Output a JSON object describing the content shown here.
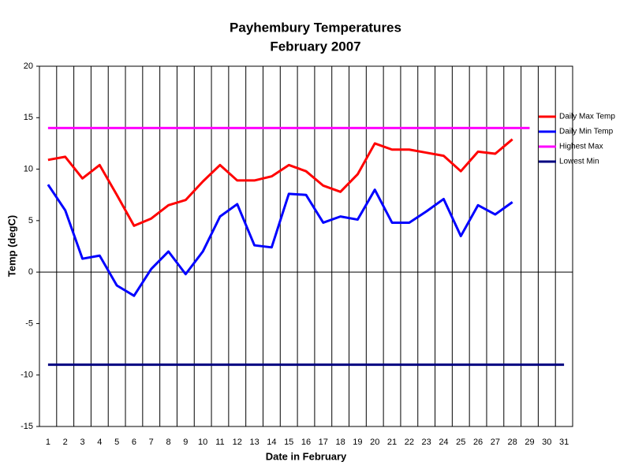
{
  "chart_data": {
    "type": "line",
    "title": [
      "Payhembury Temperatures",
      "February 2007"
    ],
    "x_label": "Date in February",
    "y_label": "Temp (degC)",
    "categories": [
      1,
      2,
      3,
      4,
      5,
      6,
      7,
      8,
      9,
      10,
      11,
      12,
      13,
      14,
      15,
      16,
      17,
      18,
      19,
      20,
      21,
      22,
      23,
      24,
      25,
      26,
      27,
      28,
      29,
      30,
      31
    ],
    "series": [
      {
        "name": "Daily Max Temp",
        "color": "#ff0000",
        "values": [
          10.9,
          11.2,
          9.1,
          10.4,
          7.5,
          4.5,
          5.2,
          6.5,
          7.0,
          8.8,
          10.4,
          8.9,
          8.9,
          9.3,
          10.4,
          9.8,
          8.4,
          7.8,
          9.5,
          12.5,
          11.9,
          11.9,
          11.6,
          11.3,
          9.8,
          11.7,
          11.5,
          12.9,
          null,
          null,
          null
        ]
      },
      {
        "name": "Daily Min Temp",
        "color": "#0000ff",
        "values": [
          8.5,
          6.0,
          1.3,
          1.6,
          -1.3,
          -2.3,
          0.3,
          2.0,
          -0.2,
          2.0,
          5.4,
          6.6,
          2.6,
          2.4,
          7.6,
          7.5,
          4.8,
          5.4,
          5.1,
          8.0,
          4.8,
          4.8,
          5.9,
          7.1,
          3.5,
          6.5,
          5.6,
          6.8,
          null,
          null,
          null
        ]
      },
      {
        "name": "Highest Max",
        "color": "#ff00ff",
        "values": [
          14,
          14,
          14,
          14,
          14,
          14,
          14,
          14,
          14,
          14,
          14,
          14,
          14,
          14,
          14,
          14,
          14,
          14,
          14,
          14,
          14,
          14,
          14,
          14,
          14,
          14,
          14,
          14,
          14,
          null,
          null
        ]
      },
      {
        "name": "Lowest Min",
        "color": "#000080",
        "values": [
          -9,
          -9,
          -9,
          -9,
          -9,
          -9,
          -9,
          -9,
          -9,
          -9,
          -9,
          -9,
          -9,
          -9,
          -9,
          -9,
          -9,
          -9,
          -9,
          -9,
          -9,
          -9,
          -9,
          -9,
          -9,
          -9,
          -9,
          -9,
          -9,
          -9,
          -9
        ]
      }
    ],
    "ylim": [
      -15,
      20
    ],
    "yticks": [
      -15,
      -10,
      -5,
      0,
      5,
      10,
      15,
      20
    ],
    "grid": "x",
    "legend": "right"
  }
}
